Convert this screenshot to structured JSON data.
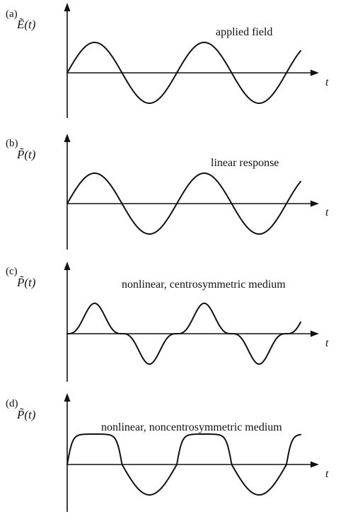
{
  "panels": [
    {
      "label": "(a)",
      "ylabel": "Ẽ(t)",
      "xlabel": "t",
      "caption": "applied field",
      "response": "linear"
    },
    {
      "label": "(b)",
      "ylabel": "P̃(t)",
      "xlabel": "t",
      "caption": "linear response",
      "response": "linear"
    },
    {
      "label": "(c)",
      "ylabel": "P̃(t)",
      "xlabel": "t",
      "caption": "nonlinear,  centrosymmetric medium",
      "response": "odd-nonlinear"
    },
    {
      "label": "(d)",
      "ylabel": "P̃(t)",
      "xlabel": "t",
      "caption": "nonlinear,  noncentrosymmetric medium",
      "response": "saturated-positive"
    }
  ]
}
